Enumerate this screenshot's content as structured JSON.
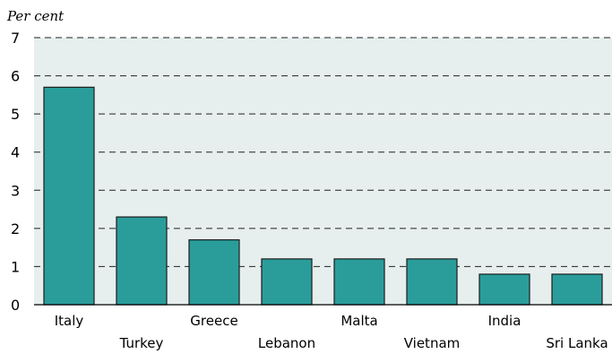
{
  "chart_data": {
    "type": "bar",
    "title": "",
    "xlabel": "",
    "ylabel": "Per cent",
    "ylim": [
      0,
      7
    ],
    "yticks": [
      0,
      1,
      2,
      3,
      4,
      5,
      6,
      7
    ],
    "grid": true,
    "categories": [
      "Italy",
      "Turkey",
      "Greece",
      "Lebanon",
      "Malta",
      "Vietnam",
      "India",
      "Sri Lanka"
    ],
    "values": [
      5.7,
      2.3,
      1.7,
      1.2,
      1.2,
      1.2,
      0.8,
      0.8
    ],
    "colors": {
      "bar": "#2a9d9b",
      "bar_outline": "#1c1c1c",
      "plot_background": "#e6eeee",
      "grid": "#222222"
    }
  }
}
